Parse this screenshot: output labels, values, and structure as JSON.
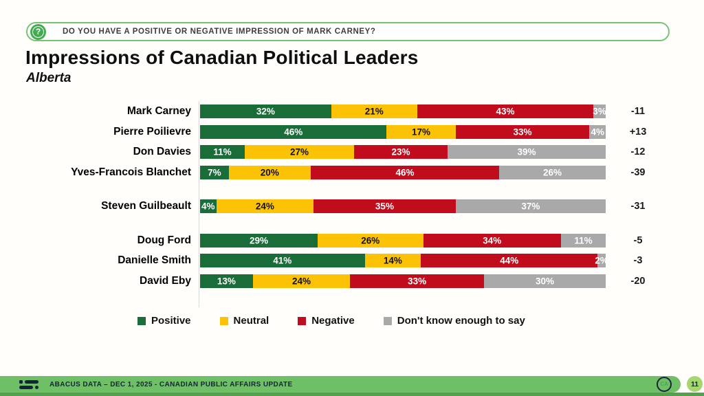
{
  "banner": {
    "question": "DO YOU HAVE A POSITIVE OR NEGATIVE IMPRESSION OF MARK CARNEY?"
  },
  "header": {
    "title": "Impressions of Canadian Political Leaders",
    "subtitle": "Alberta"
  },
  "chart_data": {
    "type": "bar",
    "orientation": "horizontal",
    "stacked": true,
    "value_suffix": "%",
    "categories": [
      "Mark Carney",
      "Pierre Poilievre",
      "Don Davies",
      "Yves-Francois Blanchet",
      "Steven Guilbeault",
      "Doug Ford",
      "Danielle Smith",
      "David Eby"
    ],
    "series": [
      {
        "name": "Positive",
        "color": "#1a6c39",
        "text_color": "#ffffff",
        "values": [
          32,
          46,
          11,
          7,
          4,
          29,
          41,
          13
        ]
      },
      {
        "name": "Neutral",
        "color": "#fcc306",
        "text_color": "#111111",
        "values": [
          21,
          17,
          27,
          20,
          24,
          26,
          14,
          24
        ]
      },
      {
        "name": "Negative",
        "color": "#c00c1c",
        "text_color": "#ffffff",
        "values": [
          43,
          33,
          23,
          46,
          35,
          34,
          44,
          33
        ]
      },
      {
        "name": "Don't know enough to say",
        "color": "#a9a9a9",
        "text_color": "#ffffff",
        "values": [
          3,
          4,
          39,
          26,
          37,
          11,
          2,
          30
        ]
      }
    ],
    "net_scores": [
      "-11",
      "+13",
      "-12",
      "-39",
      "-31",
      "-5",
      "-3",
      "-20"
    ],
    "group_gaps_before": [
      4,
      5
    ],
    "legend_position": "bottom",
    "xlim": [
      0,
      100
    ],
    "grid": false
  },
  "legend": {
    "items": [
      {
        "label": "Positive",
        "color": "#1a6c39"
      },
      {
        "label": "Neutral",
        "color": "#fcc306"
      },
      {
        "label": "Negative",
        "color": "#c00c1c"
      },
      {
        "label": "Don't know enough to say",
        "color": "#a9a9a9"
      }
    ]
  },
  "footer": {
    "source_text": "ABACUS DATA  – DEC 1, 2025 - CANADIAN PUBLIC AFFAIRS UPDATE",
    "badge": "CA",
    "page_number": "11"
  }
}
